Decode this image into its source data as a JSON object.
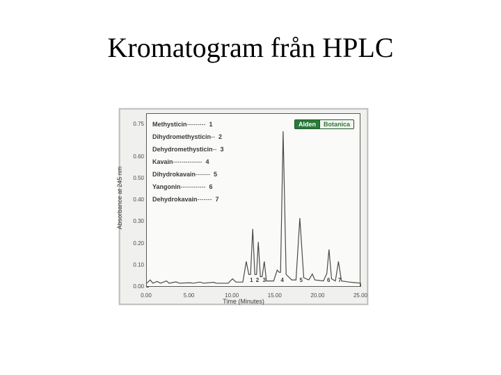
{
  "title": "Kromatogram från HPLC",
  "chart": {
    "type": "line",
    "ylabel": "Absorbance at 245 nm",
    "xlabel": "Time (Minutes)",
    "background_color": "#fafaf8",
    "frame_color": "#5a5a55",
    "line_color": "#4a4a48",
    "badge": {
      "left": "Alden",
      "right": "Botanica"
    },
    "xlim": [
      0,
      25
    ],
    "ylim": [
      0,
      0.8
    ],
    "xticks": [
      0,
      5,
      10,
      15,
      20,
      25
    ],
    "xtick_labels": [
      "0.00",
      "5.00",
      "10.00",
      "15.00",
      "20.00",
      "25.00"
    ],
    "yticks": [
      0.0,
      0.1,
      0.2,
      0.3,
      0.4,
      0.5,
      0.6,
      0.75
    ],
    "ytick_labels": [
      "0.00",
      "0.10",
      "0.20",
      "0.30",
      "0.40",
      "0.50",
      "0.60",
      "0.75"
    ],
    "legend": [
      {
        "label": "Methysticin",
        "num": 1
      },
      {
        "label": "Dihydromethysticin",
        "num": 2
      },
      {
        "label": "Dehydromethysticin",
        "num": 3
      },
      {
        "label": "Kavain",
        "num": 4
      },
      {
        "label": "Dihydrokavain",
        "num": 5
      },
      {
        "label": "Yangonin",
        "num": 6
      },
      {
        "label": "Dehydrokavain",
        "num": 7
      }
    ],
    "peak_markers": [
      {
        "num": "1",
        "x": 12.2
      },
      {
        "num": "2",
        "x": 12.9
      },
      {
        "num": "3",
        "x": 13.7
      },
      {
        "num": "4",
        "x": 15.8
      },
      {
        "num": "5",
        "x": 18.0
      },
      {
        "num": "6",
        "x": 21.2
      },
      {
        "num": "7",
        "x": 22.5
      }
    ],
    "trace": [
      [
        0.0,
        0.02
      ],
      [
        0.4,
        0.035
      ],
      [
        0.7,
        0.02
      ],
      [
        1.2,
        0.028
      ],
      [
        1.6,
        0.02
      ],
      [
        2.3,
        0.03
      ],
      [
        2.6,
        0.02
      ],
      [
        3.4,
        0.026
      ],
      [
        3.8,
        0.02
      ],
      [
        5.0,
        0.022
      ],
      [
        5.4,
        0.02
      ],
      [
        6.2,
        0.025
      ],
      [
        6.6,
        0.02
      ],
      [
        7.8,
        0.024
      ],
      [
        8.1,
        0.02
      ],
      [
        9.5,
        0.02
      ],
      [
        10.0,
        0.04
      ],
      [
        10.4,
        0.025
      ],
      [
        11.2,
        0.025
      ],
      [
        11.6,
        0.12
      ],
      [
        11.9,
        0.06
      ],
      [
        12.1,
        0.06
      ],
      [
        12.35,
        0.27
      ],
      [
        12.6,
        0.06
      ],
      [
        12.8,
        0.06
      ],
      [
        13.0,
        0.21
      ],
      [
        13.25,
        0.05
      ],
      [
        13.45,
        0.05
      ],
      [
        13.7,
        0.12
      ],
      [
        13.95,
        0.03
      ],
      [
        14.8,
        0.03
      ],
      [
        15.2,
        0.08
      ],
      [
        15.45,
        0.07
      ],
      [
        15.6,
        0.07
      ],
      [
        15.9,
        0.72
      ],
      [
        16.25,
        0.06
      ],
      [
        16.9,
        0.035
      ],
      [
        17.4,
        0.035
      ],
      [
        17.85,
        0.32
      ],
      [
        18.3,
        0.045
      ],
      [
        18.9,
        0.035
      ],
      [
        19.3,
        0.062
      ],
      [
        19.6,
        0.035
      ],
      [
        20.6,
        0.03
      ],
      [
        21.0,
        0.065
      ],
      [
        21.25,
        0.175
      ],
      [
        21.55,
        0.04
      ],
      [
        22.0,
        0.03
      ],
      [
        22.35,
        0.12
      ],
      [
        22.7,
        0.03
      ],
      [
        23.6,
        0.025
      ],
      [
        24.4,
        0.022
      ],
      [
        25.0,
        0.02
      ]
    ]
  }
}
